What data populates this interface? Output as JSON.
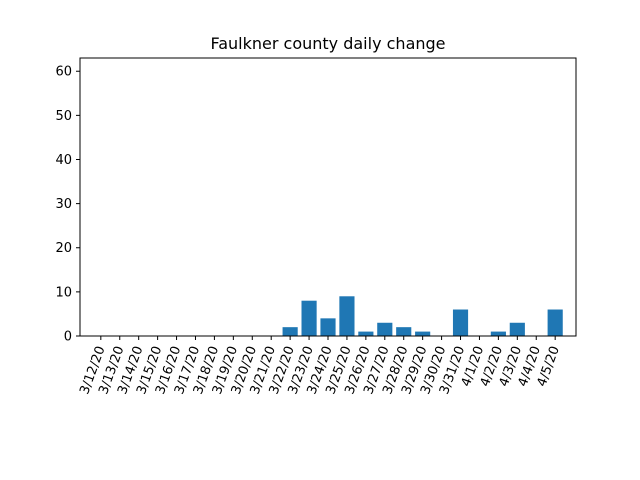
{
  "chart_data": {
    "type": "bar",
    "title": "Faulkner county daily change",
    "xlabel": "",
    "ylabel": "",
    "categories": [
      "3/12/20",
      "3/13/20",
      "3/14/20",
      "3/15/20",
      "3/16/20",
      "3/17/20",
      "3/18/20",
      "3/19/20",
      "3/20/20",
      "3/21/20",
      "3/22/20",
      "3/23/20",
      "3/24/20",
      "3/25/20",
      "3/26/20",
      "3/27/20",
      "3/28/20",
      "3/29/20",
      "3/30/20",
      "3/31/20",
      "4/1/20",
      "4/2/20",
      "4/3/20",
      "4/4/20",
      "4/5/20"
    ],
    "values": [
      0,
      0,
      0,
      0,
      0,
      0,
      0,
      0,
      0,
      0,
      2,
      8,
      4,
      9,
      1,
      3,
      2,
      1,
      0,
      6,
      0,
      1,
      3,
      0,
      6
    ],
    "ylim": [
      0,
      63
    ],
    "yticks": [
      0,
      10,
      20,
      30,
      40,
      50,
      60
    ],
    "grid": false,
    "bar_color": "#1f77b4"
  }
}
